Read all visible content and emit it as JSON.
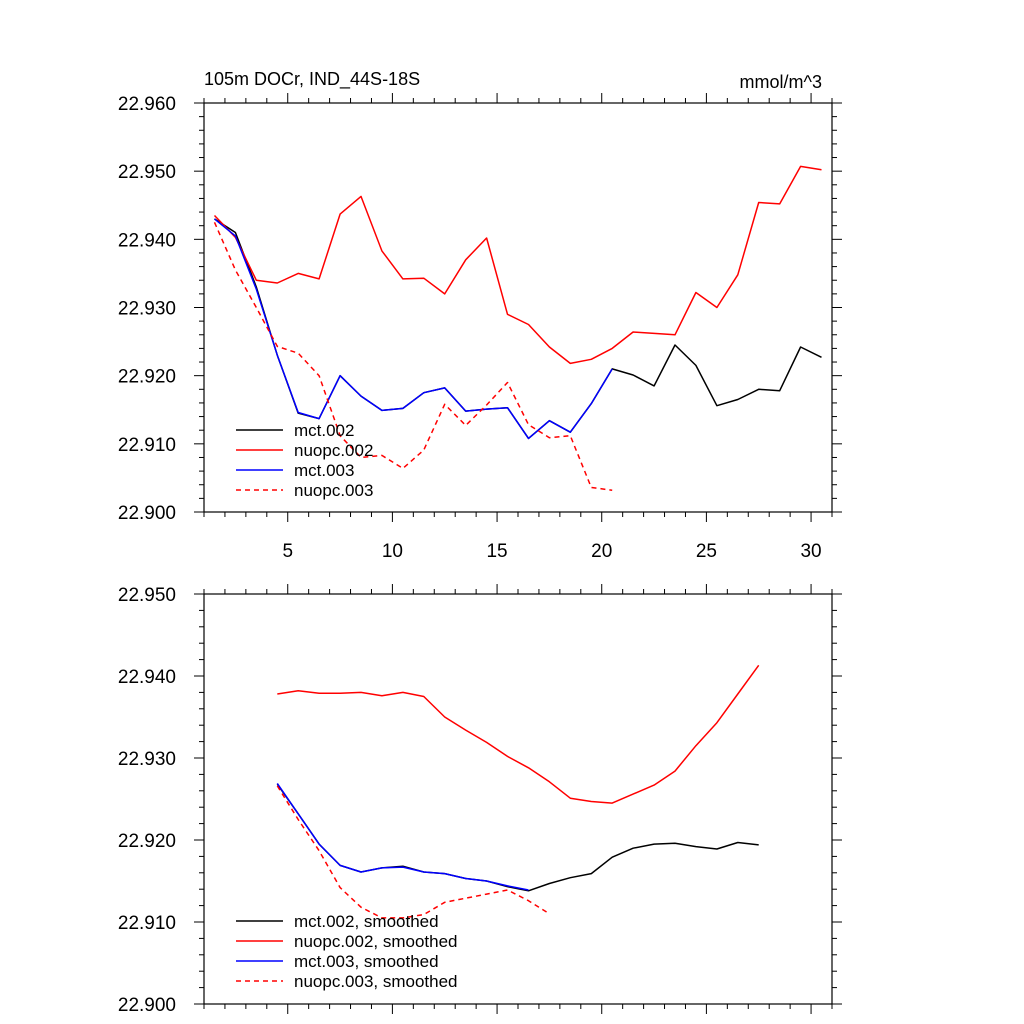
{
  "chart_data": [
    {
      "type": "line",
      "title": "105m DOCr, IND_44S-18S",
      "units_label": "mmol/m^3",
      "xlim": [
        1,
        31
      ],
      "ylim": [
        22.9,
        22.96
      ],
      "xticks": [
        5,
        10,
        15,
        20,
        25,
        30
      ],
      "yticks": [
        22.9,
        22.91,
        22.92,
        22.93,
        22.94,
        22.95,
        22.96
      ],
      "ytick_labels": [
        "22.900",
        "22.910",
        "22.920",
        "22.930",
        "22.940",
        "22.950",
        "22.960"
      ],
      "grid": false,
      "legend_position": "bottom-left",
      "series": [
        {
          "name": "mct.002",
          "color": "#000000",
          "dash": "solid",
          "x": [
            1.5,
            2.5,
            3.5,
            4.5,
            5.5,
            6.5,
            7.5,
            8.5,
            9.5,
            10.5,
            11.5,
            12.5,
            13.5,
            14.5,
            15.5,
            16.5,
            17.5,
            18.5,
            19.5,
            20.5,
            21.5,
            22.5,
            23.5,
            24.5,
            25.5,
            26.5,
            27.5,
            28.5,
            29.5,
            30.5
          ],
          "values": [
            22.943,
            22.941,
            22.933,
            22.923,
            22.9145,
            22.9137,
            22.92,
            22.917,
            22.9149,
            22.9152,
            22.9175,
            22.9182,
            22.9148,
            22.9151,
            22.9153,
            22.9108,
            22.9134,
            22.9117,
            22.9159,
            22.921,
            22.9201,
            22.9185,
            22.9245,
            22.9215,
            22.9156,
            22.9165,
            22.918,
            22.9178,
            22.9242,
            22.9227
          ]
        },
        {
          "name": "nuopc.002",
          "color": "#ff0000",
          "dash": "solid",
          "x": [
            1.5,
            2.5,
            3.5,
            4.5,
            5.5,
            6.5,
            7.5,
            8.5,
            9.5,
            10.5,
            11.5,
            12.5,
            13.5,
            14.5,
            15.5,
            16.5,
            17.5,
            18.5,
            19.5,
            20.5,
            21.5,
            22.5,
            23.5,
            24.5,
            25.5,
            26.5,
            27.5,
            28.5,
            29.5,
            30.5
          ],
          "values": [
            22.9435,
            22.9403,
            22.934,
            22.9336,
            22.935,
            22.9342,
            22.9437,
            22.9463,
            22.9383,
            22.9342,
            22.9343,
            22.932,
            22.937,
            22.9402,
            22.929,
            22.9275,
            22.9242,
            22.9218,
            22.9224,
            22.924,
            22.9264,
            22.9262,
            22.926,
            22.9322,
            22.93,
            22.9348,
            22.9454,
            22.9452,
            22.9507,
            22.9502
          ]
        },
        {
          "name": "mct.003",
          "color": "#0000ff",
          "dash": "solid",
          "x": [
            1.5,
            2.5,
            3.5,
            4.5,
            5.5,
            6.5,
            7.5,
            8.5,
            9.5,
            10.5,
            11.5,
            12.5,
            13.5,
            14.5,
            15.5,
            16.5,
            17.5,
            18.5,
            19.5,
            20.5
          ],
          "values": [
            22.943,
            22.9405,
            22.9327,
            22.923,
            22.9146,
            22.9137,
            22.92,
            22.917,
            22.9149,
            22.9152,
            22.9175,
            22.9182,
            22.9148,
            22.9151,
            22.9153,
            22.9108,
            22.9134,
            22.9117,
            22.9159,
            22.921
          ]
        },
        {
          "name": "nuopc.003",
          "color": "#ff0000",
          "dash": "dashed",
          "x": [
            1.5,
            2.5,
            3.5,
            4.5,
            5.5,
            6.5,
            7.5,
            8.5,
            9.5,
            10.5,
            11.5,
            12.5,
            13.5,
            14.5,
            15.5,
            16.5,
            17.5,
            18.5,
            19.5,
            20.5
          ],
          "values": [
            22.9425,
            22.9355,
            22.93,
            22.9243,
            22.9233,
            22.92,
            22.9112,
            22.908,
            22.9083,
            22.9064,
            22.9091,
            22.9158,
            22.9127,
            22.9157,
            22.919,
            22.9128,
            22.9109,
            22.9112,
            22.9036,
            22.9032
          ]
        }
      ]
    },
    {
      "type": "line",
      "title": "",
      "xlim": [
        1,
        31
      ],
      "ylim": [
        22.9,
        22.95
      ],
      "xticks": [
        5,
        10,
        15,
        20,
        25,
        30
      ],
      "yticks": [
        22.9,
        22.91,
        22.92,
        22.93,
        22.94,
        22.95
      ],
      "ytick_labels": [
        "22.900",
        "22.910",
        "22.920",
        "22.930",
        "22.940",
        "22.950"
      ],
      "grid": false,
      "legend_position": "bottom-left",
      "series": [
        {
          "name": "mct.002, smoothed",
          "color": "#000000",
          "dash": "solid",
          "x": [
            4.5,
            5.5,
            6.5,
            7.5,
            8.5,
            9.5,
            10.5,
            11.5,
            12.5,
            13.5,
            14.5,
            15.5,
            16.5,
            17.5,
            18.5,
            19.5,
            20.5,
            21.5,
            22.5,
            23.5,
            24.5,
            25.5,
            26.5,
            27.5
          ],
          "values": [
            22.9268,
            22.9232,
            22.9195,
            22.9169,
            22.9161,
            22.9166,
            22.9168,
            22.9161,
            22.9159,
            22.9153,
            22.915,
            22.9143,
            22.9138,
            22.9147,
            22.9154,
            22.9159,
            22.9179,
            22.919,
            22.9195,
            22.9196,
            22.9192,
            22.9189,
            22.9197,
            22.9194
          ]
        },
        {
          "name": "nuopc.002, smoothed",
          "color": "#ff0000",
          "dash": "solid",
          "x": [
            4.5,
            5.5,
            6.5,
            7.5,
            8.5,
            9.5,
            10.5,
            11.5,
            12.5,
            13.5,
            14.5,
            15.5,
            16.5,
            17.5,
            18.5,
            19.5,
            20.5,
            21.5,
            22.5,
            23.5,
            24.5,
            25.5,
            26.5,
            27.5
          ],
          "values": [
            22.9378,
            22.9382,
            22.9379,
            22.9379,
            22.938,
            22.9376,
            22.938,
            22.9375,
            22.935,
            22.9334,
            22.9319,
            22.9302,
            22.9288,
            22.9271,
            22.9251,
            22.9247,
            22.9245,
            22.9256,
            22.9267,
            22.9284,
            22.9315,
            22.9343,
            22.9378,
            22.9413
          ]
        },
        {
          "name": "mct.003, smoothed",
          "color": "#0000ff",
          "dash": "solid",
          "x": [
            4.5,
            5.5,
            6.5,
            7.5,
            8.5,
            9.5,
            10.5,
            11.5,
            12.5,
            13.5,
            14.5,
            15.5,
            16.5
          ],
          "values": [
            22.9269,
            22.9232,
            22.9195,
            22.9169,
            22.9161,
            22.9166,
            22.9167,
            22.9161,
            22.9159,
            22.9153,
            22.915,
            22.9144,
            22.9139
          ]
        },
        {
          "name": "nuopc.003, smoothed",
          "color": "#ff0000",
          "dash": "dashed",
          "x": [
            4.5,
            5.5,
            6.5,
            7.5,
            8.5,
            9.5,
            10.5,
            11.5,
            12.5,
            13.5,
            14.5,
            15.5,
            16.5,
            17.5
          ],
          "values": [
            22.9266,
            22.9225,
            22.9187,
            22.9142,
            22.9118,
            22.9105,
            22.9105,
            22.9109,
            22.9124,
            22.9129,
            22.9134,
            22.9139,
            22.9126,
            22.911
          ]
        }
      ]
    }
  ]
}
